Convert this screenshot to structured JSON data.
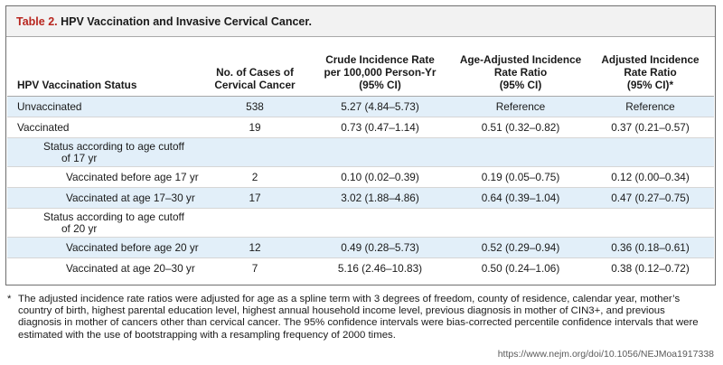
{
  "table": {
    "label": "Table 2.",
    "title": "HPV Vaccination and Invasive Cervical Cancer.",
    "columns": [
      "HPV Vaccination Status",
      "No. of Cases of Cervical Cancer",
      "Crude Incidence Rate per 100,000 Person-Yr (95% CI)",
      "Age-Adjusted Incidence Rate Ratio (95% CI)",
      "Adjusted Incidence Rate Ratio (95% CI)*"
    ],
    "header_lines": {
      "col2": [
        "No. of Cases of",
        "Cervical Cancer"
      ],
      "col3": [
        "Crude Incidence Rate",
        "per 100,000 Person-Yr",
        "(95% CI)"
      ],
      "col4": [
        "Age-Adjusted Incidence",
        "Rate Ratio",
        "(95% CI)"
      ],
      "col5": [
        "Adjusted Incidence",
        "Rate Ratio",
        "(95% CI)*"
      ]
    },
    "rows": [
      {
        "label": "Unvaccinated",
        "cases": "538",
        "crude": "5.27 (4.84–5.73)",
        "age_adj": "Reference",
        "adj": "Reference"
      },
      {
        "label": "Vaccinated",
        "cases": "19",
        "crude": "0.73 (0.47–1.14)",
        "age_adj": "0.51 (0.32–0.82)",
        "adj": "0.37 (0.21–0.57)"
      },
      {
        "label_lines": [
          "Status according to age cutoff",
          "of 17 yr"
        ]
      },
      {
        "label": "Vaccinated before age 17 yr",
        "cases": "2",
        "crude": "0.10 (0.02–0.39)",
        "age_adj": "0.19 (0.05–0.75)",
        "adj": "0.12 (0.00–0.34)"
      },
      {
        "label": "Vaccinated at age 17–30 yr",
        "cases": "17",
        "crude": "3.02 (1.88–4.86)",
        "age_adj": "0.64 (0.39–1.04)",
        "adj": "0.47 (0.27–0.75)"
      },
      {
        "label_lines": [
          "Status according to age cutoff",
          "of 20 yr"
        ]
      },
      {
        "label": "Vaccinated before age 20 yr",
        "cases": "12",
        "crude": "0.49 (0.28–5.73)",
        "age_adj": "0.52 (0.29–0.94)",
        "adj": "0.36 (0.18–0.61)"
      },
      {
        "label": "Vaccinated at age 20–30 yr",
        "cases": "7",
        "crude": "5.16 (2.46–10.83)",
        "age_adj": "0.50 (0.24–1.06)",
        "adj": "0.38 (0.12–0.72)"
      }
    ]
  },
  "footnote": {
    "mark": "*",
    "text": "The adjusted incidence rate ratios were adjusted for age as a spline term with 3 degrees of freedom, county of residence, calendar year, mother’s country of birth, highest parental education level, highest annual household income level, previous diagnosis in mother of CIN3+, and previous diagnosis in mother of cancers other than cervical cancer. The 95% confidence intervals were bias-corrected percentile confidence intervals that were estimated with the use of bootstrapping with a resampling frequency of 2000 times."
  },
  "source_url": "https://www.nejm.org/doi/10.1056/NEJMoa1917338",
  "colors": {
    "title_label": "#b8261f",
    "title_bar_bg": "#f2f2f2",
    "row_shade": "#e2eff9",
    "border": "#6f6f6f"
  }
}
